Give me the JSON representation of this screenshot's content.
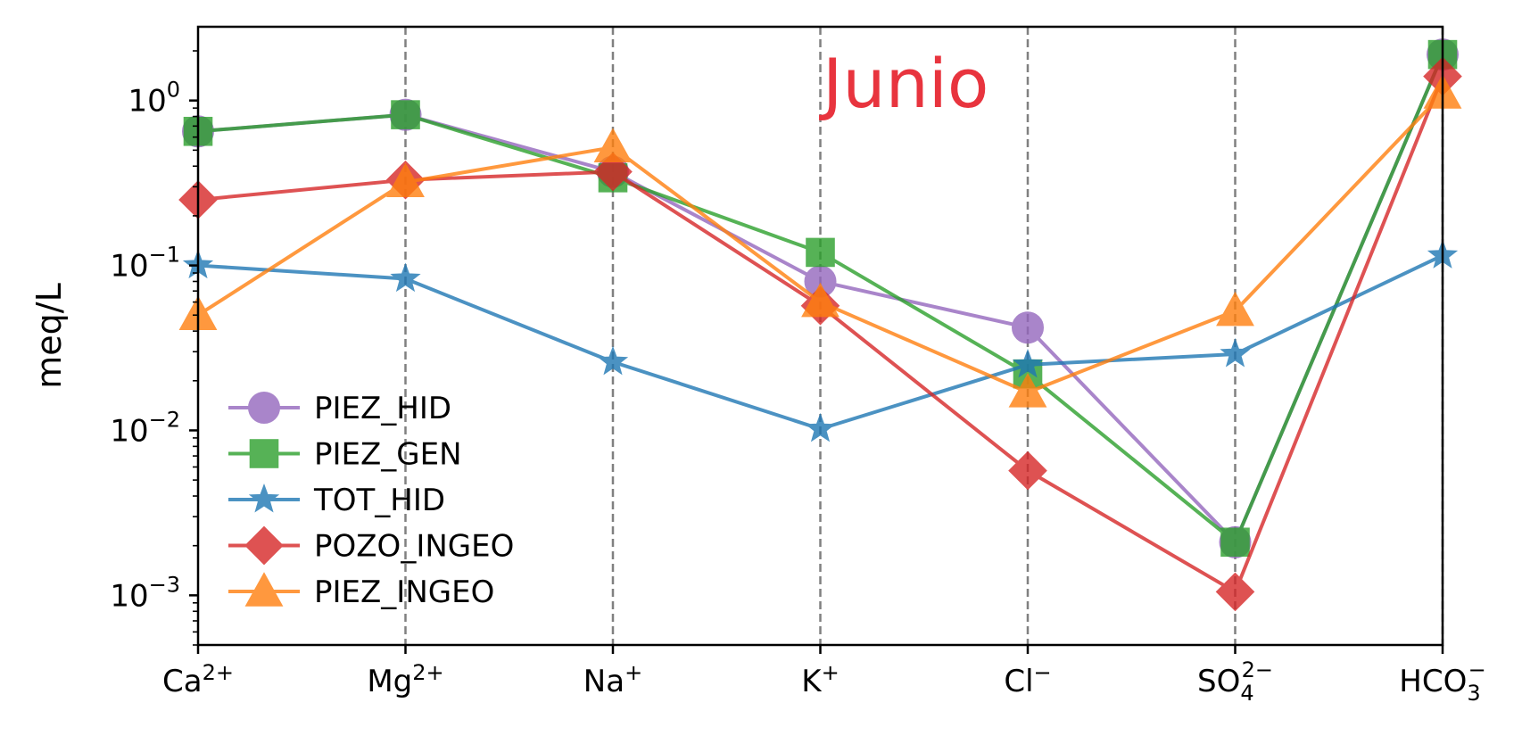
{
  "chart_data": {
    "type": "line",
    "title": "",
    "annotation": "Junio",
    "annotation_color": "#e8343e",
    "xlabel": "",
    "ylabel": "meq/L",
    "y_scale": "log",
    "ylim": [
      0.0005,
      2.8
    ],
    "y_ticks": [
      0.001,
      0.01,
      0.1,
      1
    ],
    "y_tick_labels": [
      {
        "base": "10",
        "exp": "−3"
      },
      {
        "base": "10",
        "exp": "−2"
      },
      {
        "base": "10",
        "exp": "−1"
      },
      {
        "base": "10",
        "exp": "0"
      }
    ],
    "categories": [
      {
        "base": "Ca",
        "sup": "2+",
        "sub": ""
      },
      {
        "base": "Mg",
        "sup": "2+",
        "sub": ""
      },
      {
        "base": "Na",
        "sup": "+",
        "sub": ""
      },
      {
        "base": "K",
        "sup": "+",
        "sub": ""
      },
      {
        "base": "Cl",
        "sup": "−",
        "sub": ""
      },
      {
        "base": "SO",
        "sup": "2−",
        "sub": "4"
      },
      {
        "base": "HCO",
        "sup": "−",
        "sub": "3"
      }
    ],
    "grid": "vertical dashed lines at categories",
    "legend_position": "lower-left",
    "series": [
      {
        "name": "PIEZ_HID",
        "color": "#9467bd",
        "marker": "circle",
        "values": [
          0.65,
          0.82,
          0.37,
          0.08,
          0.042,
          0.0021,
          1.9
        ]
      },
      {
        "name": "PIEZ_GEN",
        "color": "#2ca02c",
        "marker": "square",
        "values": [
          0.65,
          0.82,
          0.34,
          0.12,
          0.022,
          0.0021,
          1.9
        ]
      },
      {
        "name": "TOT_HID",
        "color": "#1f77b4",
        "marker": "star",
        "values": [
          0.1,
          0.083,
          0.026,
          0.0102,
          0.025,
          0.029,
          0.115
        ]
      },
      {
        "name": "POZO_INGEO",
        "color": "#d62728",
        "marker": "diamond",
        "values": [
          0.25,
          0.33,
          0.37,
          0.057,
          0.0057,
          0.00105,
          1.4
        ]
      },
      {
        "name": "PIEZ_INGEO",
        "color": "#ff7f0e",
        "marker": "triangle",
        "values": [
          0.05,
          0.32,
          0.52,
          0.06,
          0.017,
          0.053,
          1.1
        ]
      }
    ]
  }
}
